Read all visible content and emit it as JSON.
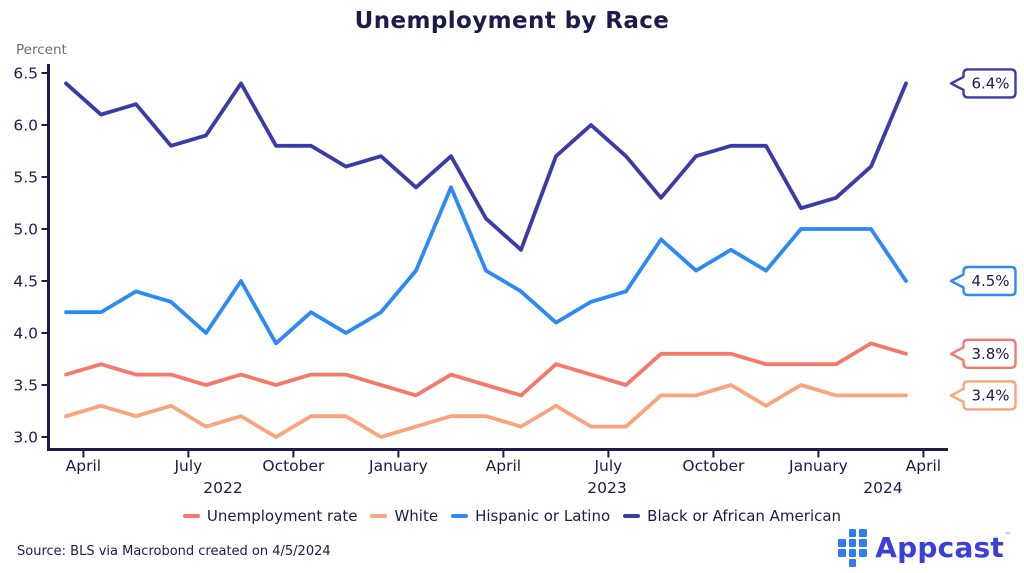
{
  "title": "Unemployment by Race",
  "y_axis": {
    "label": "Percent"
  },
  "legend": {
    "items": [
      "Unemployment rate",
      "White",
      "Hispanic or Latino",
      "Black or African American"
    ]
  },
  "footer": {
    "source": "Source: BLS via Macrobond created on 4/5/2024",
    "logo_text": "Appcast",
    "logo_tm": "™"
  },
  "colors": {
    "text_dark": "#1C1B4B",
    "axis": "#1C1B4B",
    "muted_gray": "#6E6E6E",
    "logo_mark_blue": "#2F7DF6",
    "logo_text_blue": "#3A40D8"
  },
  "chart_data": {
    "type": "line",
    "title": "Unemployment by Race",
    "ylabel": "Percent",
    "ylim": [
      3.0,
      6.5
    ],
    "grid": false,
    "legend_position": "bottom",
    "y_ticks": [
      "6.5",
      "6.0",
      "5.5",
      "5.0",
      "4.5",
      "4.0",
      "3.5",
      "3.0"
    ],
    "x": [
      "Apr 2022",
      "May 2022",
      "Jun 2022",
      "Jul 2022",
      "Aug 2022",
      "Sep 2022",
      "Oct 2022",
      "Nov 2022",
      "Dec 2022",
      "Jan 2023",
      "Feb 2023",
      "Mar 2023",
      "Apr 2023",
      "May 2023",
      "Jun 2023",
      "Jul 2023",
      "Aug 2023",
      "Sep 2023",
      "Oct 2023",
      "Nov 2023",
      "Dec 2023",
      "Jan 2024",
      "Feb 2024",
      "Mar 2024",
      "Apr 2024"
    ],
    "x_tick_labels": [
      "April",
      "July",
      "October",
      "January",
      "April",
      "July",
      "October",
      "January",
      "April"
    ],
    "x_tick_month_indices": [
      0,
      3,
      6,
      9,
      12,
      15,
      18,
      21,
      24
    ],
    "year_labels": [
      "2022",
      "2023",
      "2024"
    ],
    "series": [
      {
        "name": "Unemployment rate",
        "color": "#F5796B",
        "values": [
          3.6,
          3.7,
          3.6,
          3.6,
          3.5,
          3.6,
          3.5,
          3.6,
          3.6,
          3.5,
          3.4,
          3.6,
          3.5,
          3.4,
          3.7,
          3.6,
          3.5,
          3.8,
          3.8,
          3.8,
          3.7,
          3.7,
          3.7,
          3.9,
          3.8
        ]
      },
      {
        "name": "White",
        "color": "#F9A47D",
        "values": [
          3.2,
          3.3,
          3.2,
          3.3,
          3.1,
          3.2,
          3.0,
          3.2,
          3.2,
          3.0,
          3.1,
          3.2,
          3.2,
          3.1,
          3.3,
          3.1,
          3.1,
          3.4,
          3.4,
          3.5,
          3.3,
          3.5,
          3.4,
          3.4,
          3.4
        ]
      },
      {
        "name": "Hispanic or Latino",
        "color": "#2B8AF7",
        "values": [
          4.2,
          4.2,
          4.4,
          4.3,
          4.0,
          4.5,
          3.9,
          4.2,
          4.0,
          4.2,
          4.6,
          5.4,
          4.6,
          4.4,
          4.1,
          4.3,
          4.4,
          4.9,
          4.6,
          4.8,
          4.6,
          5.0,
          5.0,
          5.0,
          4.5
        ]
      },
      {
        "name": "Black or African American",
        "color": "#3B3BA8",
        "values": [
          6.4,
          6.1,
          6.2,
          5.8,
          5.9,
          6.4,
          5.8,
          5.8,
          5.6,
          5.7,
          5.4,
          5.7,
          5.1,
          4.8,
          5.7,
          6.0,
          5.7,
          5.3,
          5.7,
          5.8,
          5.8,
          5.2,
          5.3,
          5.6,
          6.4
        ]
      }
    ],
    "callouts": [
      {
        "text": "6.4%",
        "value": 6.4,
        "series": "Black or African American",
        "color": "#3B3BA8"
      },
      {
        "text": "4.5%",
        "value": 4.5,
        "series": "Hispanic or Latino",
        "color": "#2B8AF7"
      },
      {
        "text": "3.8%",
        "value": 3.8,
        "series": "Unemployment rate",
        "color": "#F5796B"
      },
      {
        "text": "3.4%",
        "value": 3.4,
        "series": "White",
        "color": "#F9A47D"
      }
    ]
  }
}
